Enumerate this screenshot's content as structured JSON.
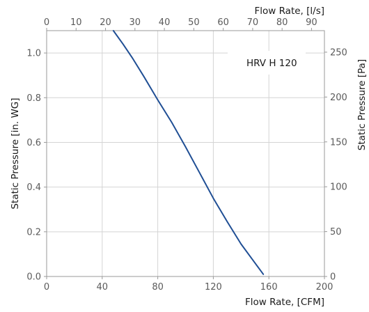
{
  "chart_data": {
    "type": "line",
    "legend_position": "top-right",
    "grid": true,
    "x_axis_bottom": {
      "label": "Flow Rate, [CFM]",
      "range": [
        0,
        200
      ],
      "ticks": [
        "0",
        "40",
        "80",
        "120",
        "160",
        "200"
      ],
      "tick_values": [
        0,
        40,
        80,
        120,
        160,
        200
      ]
    },
    "x_axis_top": {
      "label": "Flow Rate, [l/s]",
      "range": [
        0,
        94.39
      ],
      "ticks": [
        "0",
        "10",
        "20",
        "30",
        "40",
        "50",
        "60",
        "70",
        "80",
        "90"
      ],
      "tick_values": [
        0,
        10,
        20,
        30,
        40,
        50,
        60,
        70,
        80,
        90
      ]
    },
    "y_axis_left": {
      "label": "Static Pressure [in. WG]",
      "range": [
        0,
        1.1
      ],
      "ticks": [
        "0.0",
        "0.2",
        "0.4",
        "0.6",
        "0.8",
        "1.0"
      ],
      "tick_values": [
        0,
        0.2,
        0.4,
        0.6,
        0.8,
        1.0
      ]
    },
    "y_axis_right": {
      "label": "Static Pressure [Pa]",
      "range": [
        0,
        274
      ],
      "ticks": [
        "0",
        "50",
        "100",
        "150",
        "200",
        "250"
      ],
      "tick_values": [
        0,
        50,
        100,
        150,
        200,
        250
      ]
    },
    "series": [
      {
        "name": "HRV H 120",
        "color": "#1f4e94",
        "x": [
          48,
          55,
          62,
          70,
          80,
          90,
          100,
          110,
          120,
          130,
          140,
          150,
          156
        ],
        "y": [
          1.1,
          1.04,
          0.975,
          0.895,
          0.79,
          0.69,
          0.58,
          0.465,
          0.35,
          0.245,
          0.145,
          0.06,
          0.01
        ]
      }
    ]
  }
}
